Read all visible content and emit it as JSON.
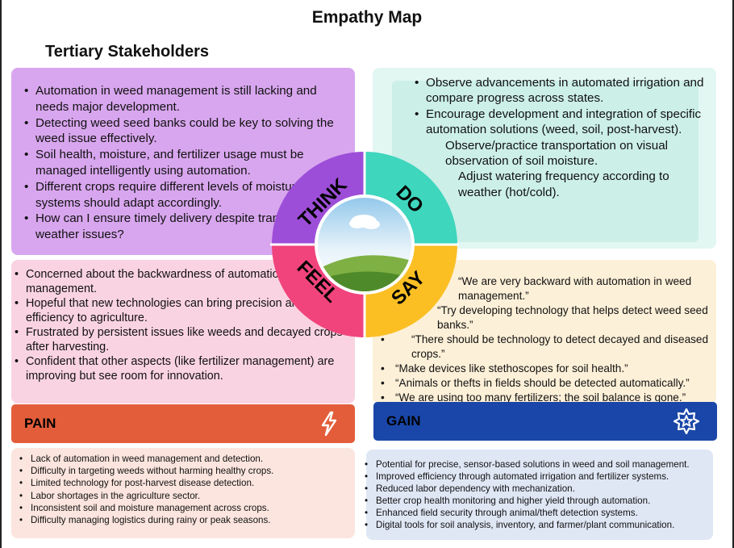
{
  "title": "Empathy Map",
  "subtitle": "Tertiary Stakeholders",
  "colors": {
    "think": "#9d4ed8",
    "do": "#3ed6bd",
    "feel": "#f1447d",
    "say": "#fbbf24",
    "pain": "#e35d3b",
    "gain": "#1946a8"
  },
  "wheel": {
    "think": "THINK",
    "do": "DO",
    "feel": "FEEL",
    "say": "SAY"
  },
  "think": [
    "Automation in weed management is still lacking and needs major development.",
    "Detecting weed seed banks could be key to solving the weed issue effectively.",
    "Soil health, moisture, and fertilizer usage must be managed intelligently using automation.",
    "Different crops require different levels of moisture—systems should adapt accordingly.",
    "How can I ensure timely delivery despite transport and weather issues?"
  ],
  "do": [
    "Observe advancements in automated irrigation and compare progress across states.",
    "Encourage development and integration of specific automation solutions (weed, soil, post-harvest).",
    "Observe/practice transportation on visual observation of soil moisture.",
    "Adjust watering frequency according to weather (hot/cold)."
  ],
  "feel": [
    "Concerned about the backwardness of automation in weed management.",
    "Hopeful that new technologies can bring precision and efficiency to agriculture.",
    "Frustrated by persistent issues like weeds and decayed crops after harvesting.",
    "Confident that other aspects (like fertilizer management) are improving but see room for innovation."
  ],
  "say": [
    "“We are very backward with automation in weed management.”",
    "“Try developing technology that helps detect weed seed banks.”",
    "“There should be technology to detect decayed and diseased crops.”",
    "“Make devices like stethoscopes for soil health.”",
    "“Animals or thefts in fields should be detected automatically.”",
    "“We are using too many fertilizers; the soil balance is gone.”"
  ],
  "pain_label": "PAIN",
  "gain_label": "GAIN",
  "pain_icon": "lightning-bolt-icon",
  "gain_icon": "star-badge-icon",
  "pain": [
    "Lack of automation in weed management and detection.",
    "Difficulty in targeting weeds without harming healthy crops.",
    "Limited technology for post-harvest disease detection.",
    "Labor shortages in the agriculture sector.",
    "Inconsistent soil and moisture management across crops.",
    "Difficulty managing logistics during rainy or peak seasons."
  ],
  "gain": [
    "Potential for precise, sensor-based solutions in weed and soil management.",
    "Improved efficiency through automated irrigation and fertilizer systems.",
    "Reduced labor dependency with mechanization.",
    "Better crop health monitoring and higher yield through automation.",
    "Enhanced field security through animal/theft detection systems.",
    "Digital tools for soil analysis, inventory, and farmer/plant communication."
  ]
}
